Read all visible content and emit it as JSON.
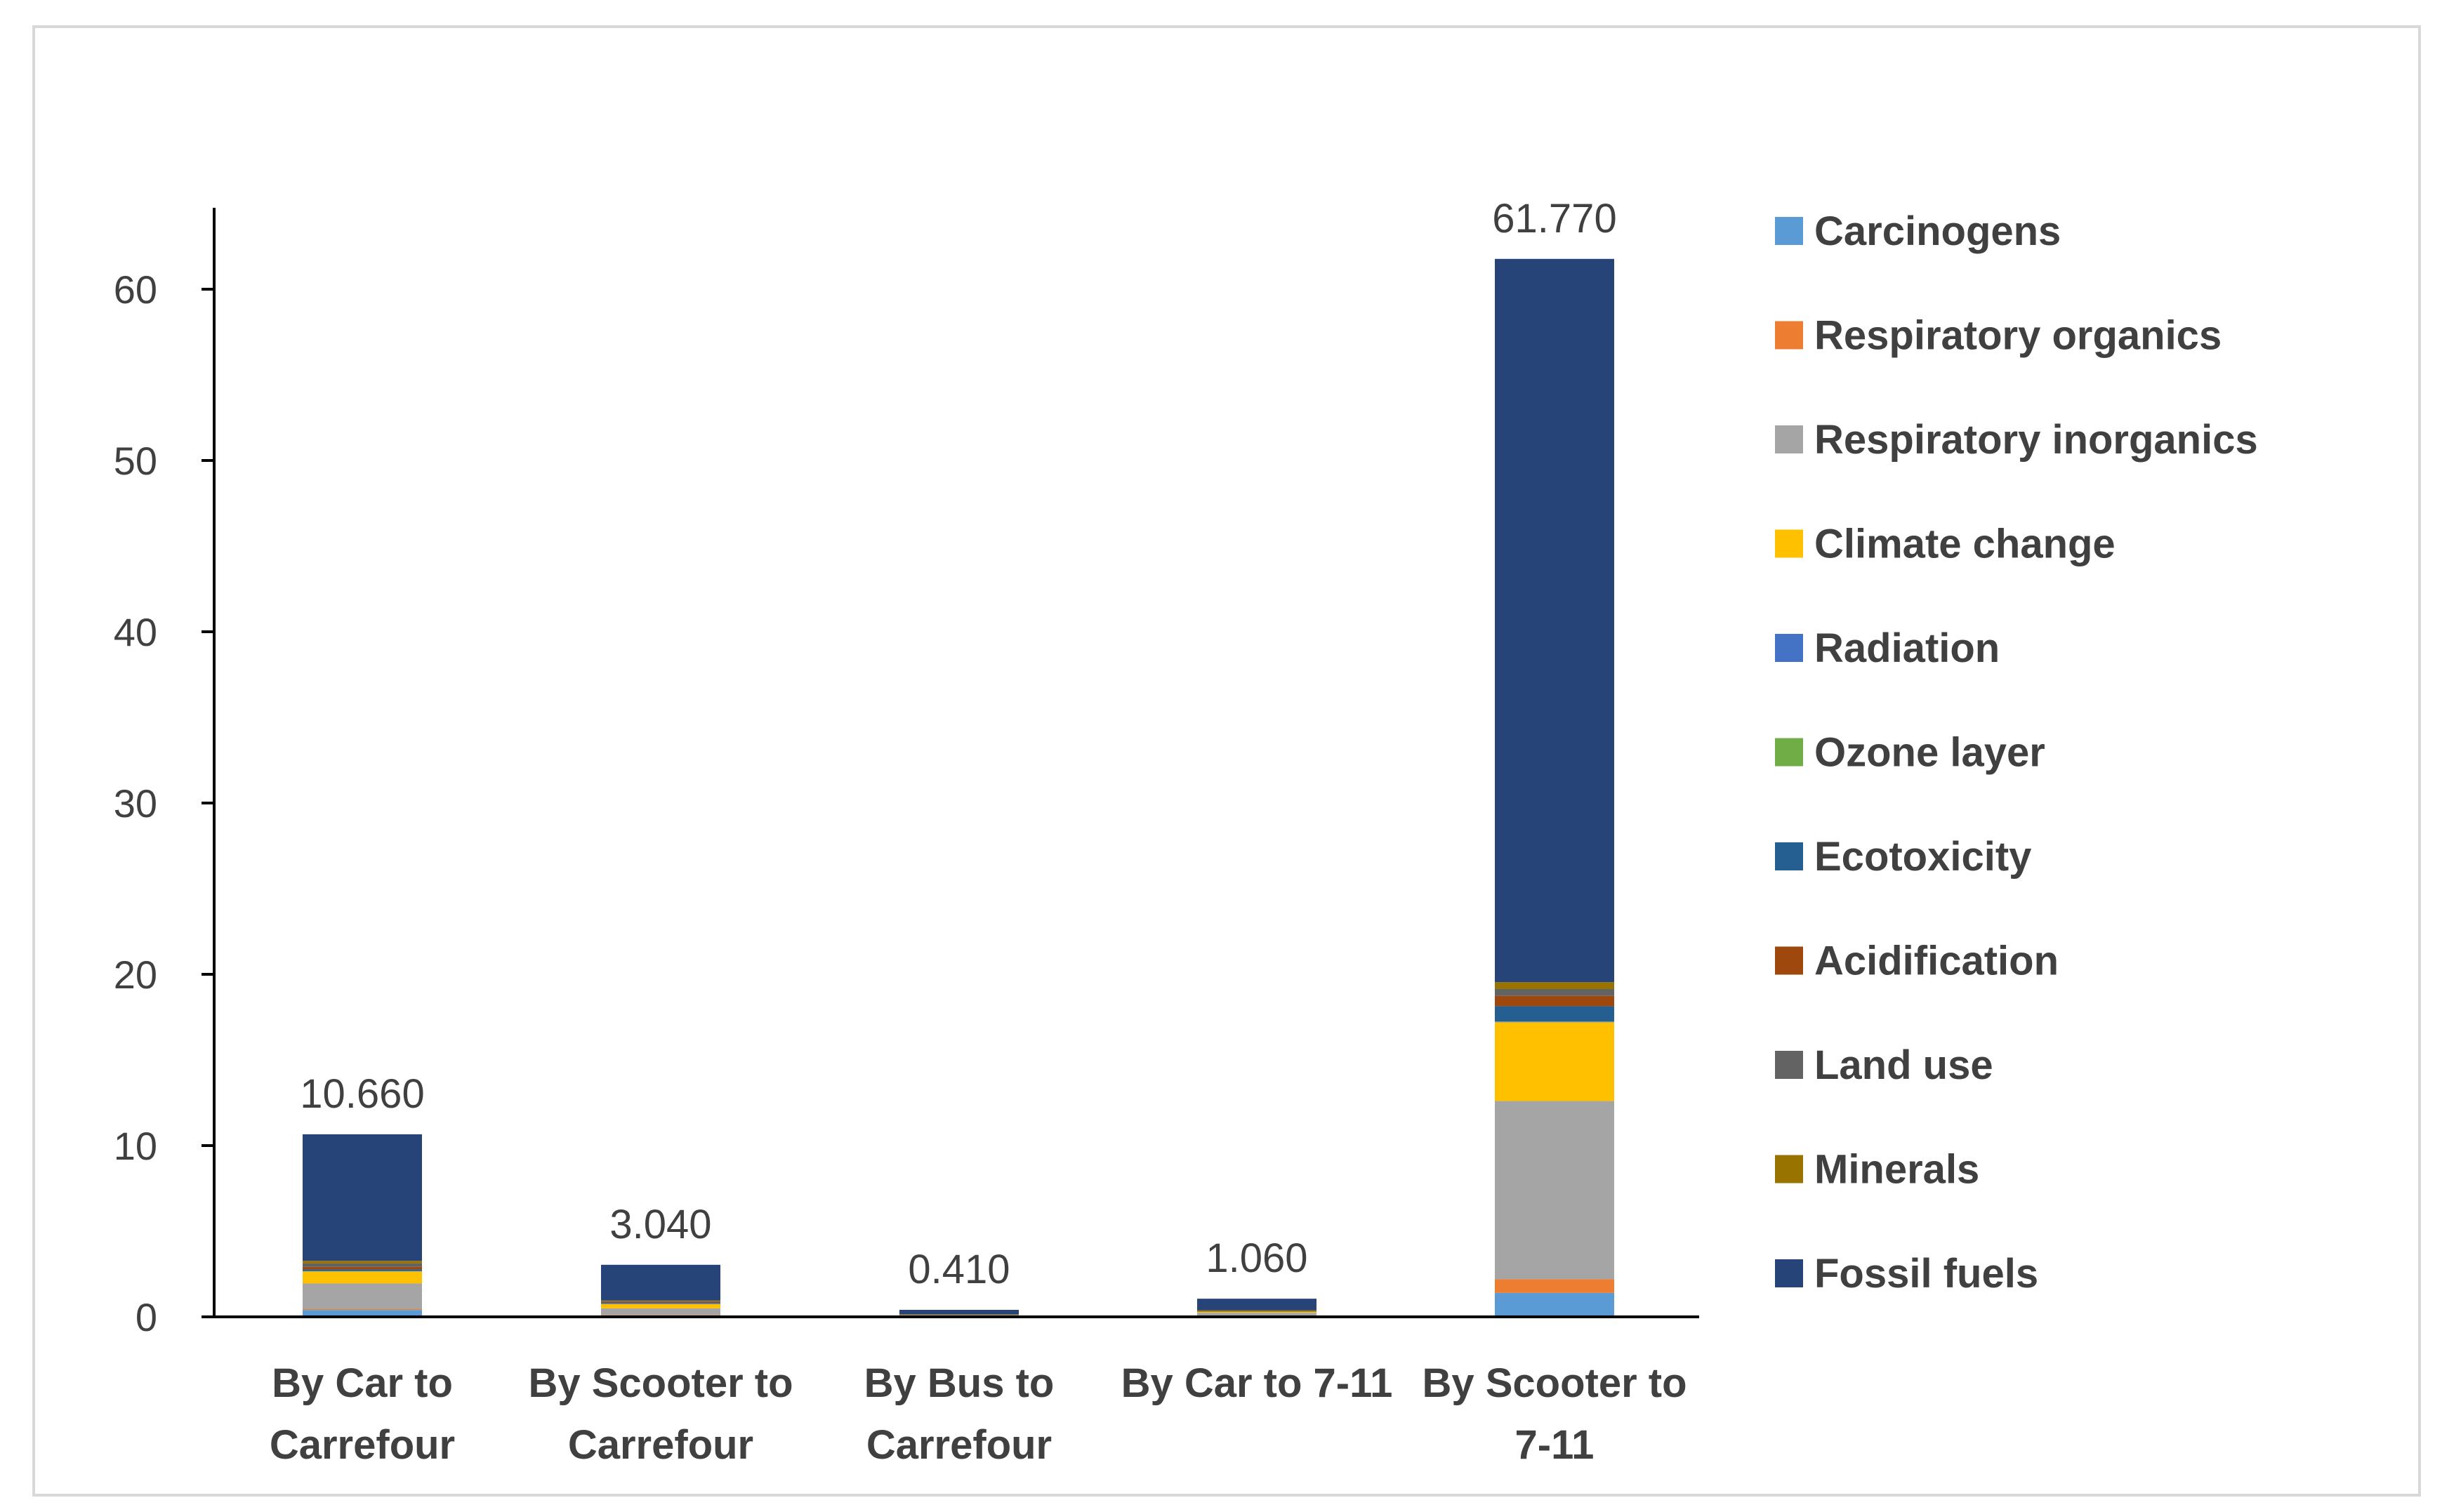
{
  "chart_data": {
    "type": "bar",
    "stacked": true,
    "title": "",
    "xlabel": "",
    "ylabel": "",
    "ylim": [
      0,
      65
    ],
    "yticks": [
      0,
      10,
      20,
      30,
      40,
      50,
      60
    ],
    "grid": false,
    "legend_position": "right",
    "categories": [
      [
        "By Car to",
        "Carrefour"
      ],
      [
        "By Scooter to",
        "Carrefour"
      ],
      [
        "By Bus to",
        "Carrefour"
      ],
      [
        "By Car to 7-11"
      ],
      [
        "By Scooter to",
        "7-11"
      ]
    ],
    "totals": [
      "10.660",
      "3.040",
      "0.410",
      "1.060",
      "61.770"
    ],
    "series": [
      {
        "name": "Carcinogens",
        "color": "#5B9BD5",
        "values": [
          0.4,
          0.05,
          0.01,
          0.03,
          1.4
        ]
      },
      {
        "name": "Respiratory organics",
        "color": "#ED7D31",
        "values": [
          0.05,
          0.05,
          0.01,
          0.01,
          0.8
        ]
      },
      {
        "name": "Respiratory inorganics",
        "color": "#A5A5A5",
        "values": [
          1.5,
          0.4,
          0.05,
          0.2,
          10.4
        ]
      },
      {
        "name": "Climate change",
        "color": "#FFC000",
        "values": [
          0.7,
          0.25,
          0.03,
          0.07,
          4.6
        ]
      },
      {
        "name": "Radiation",
        "color": "#4472C4",
        "values": [
          0.01,
          0.01,
          0.0,
          0.0,
          0.02
        ]
      },
      {
        "name": "Ozone layer",
        "color": "#70AD47",
        "values": [
          0.01,
          0.0,
          0.0,
          0.0,
          0.02
        ]
      },
      {
        "name": "Ecotoxicity",
        "color": "#255E91",
        "values": [
          0.1,
          0.05,
          0.01,
          0.02,
          0.9
        ]
      },
      {
        "name": "Acidification",
        "color": "#9E480E",
        "values": [
          0.15,
          0.05,
          0.01,
          0.02,
          0.6
        ]
      },
      {
        "name": "Land use",
        "color": "#636363",
        "values": [
          0.2,
          0.05,
          0.01,
          0.02,
          0.4
        ]
      },
      {
        "name": "Minerals",
        "color": "#997300",
        "values": [
          0.15,
          0.04,
          0.01,
          0.02,
          0.4
        ]
      },
      {
        "name": "Fossil fuels",
        "color": "#264478",
        "values": [
          7.39,
          2.09,
          0.27,
          0.67,
          42.23
        ]
      }
    ]
  }
}
